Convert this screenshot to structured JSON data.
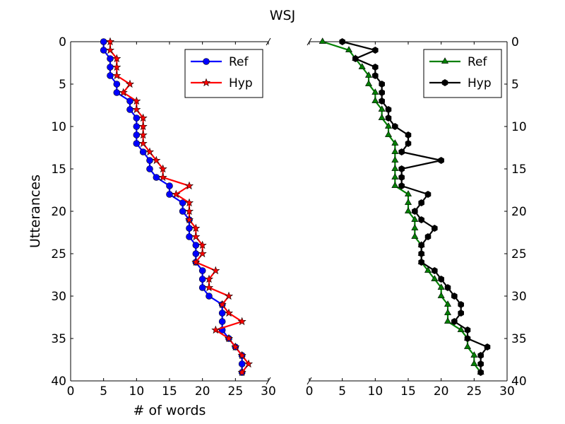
{
  "chart_data": {
    "type": "line",
    "title": "WSJ",
    "panels": [
      {
        "name": "left",
        "xlabel": "# of words",
        "ylabel": "Utterances",
        "xlim": [
          0,
          30
        ],
        "ylim": [
          40,
          0
        ],
        "xticks": [
          0,
          5,
          10,
          15,
          20,
          25,
          30
        ],
        "yticks": [
          0,
          5,
          10,
          15,
          20,
          25,
          30,
          35,
          40
        ],
        "legend_position": "top-right",
        "series": [
          {
            "name": "Ref",
            "color": "#0000ff",
            "marker": "circle",
            "x": [
              5,
              5,
              6,
              6,
              6,
              7,
              7,
              9,
              9,
              10,
              10,
              10,
              10,
              11,
              12,
              12,
              13,
              15,
              15,
              17,
              17,
              18,
              18,
              18,
              19,
              19,
              19,
              20,
              20,
              20,
              21,
              23,
              23,
              23,
              23,
              24,
              25,
              26,
              26,
              26
            ],
            "y": [
              0,
              1,
              2,
              3,
              4,
              5,
              6,
              7,
              8,
              9,
              10,
              11,
              12,
              13,
              14,
              15,
              16,
              17,
              18,
              19,
              20,
              21,
              22,
              23,
              24,
              25,
              26,
              27,
              28,
              29,
              30,
              31,
              32,
              33,
              34,
              35,
              36,
              37,
              38,
              39
            ]
          },
          {
            "name": "Hyp",
            "color": "#ff0000",
            "marker": "star",
            "x": [
              6,
              6,
              7,
              7,
              7,
              9,
              8,
              10,
              10,
              11,
              11,
              11,
              11,
              12,
              13,
              14,
              14,
              18,
              16,
              18,
              18,
              18,
              19,
              19,
              20,
              20,
              19,
              22,
              21,
              21,
              24,
              23,
              24,
              26,
              22,
              24,
              25,
              26,
              27,
              26
            ],
            "y": [
              0,
              1,
              2,
              3,
              4,
              5,
              6,
              7,
              8,
              9,
              10,
              11,
              12,
              13,
              14,
              15,
              16,
              17,
              18,
              19,
              20,
              21,
              22,
              23,
              24,
              25,
              26,
              27,
              28,
              29,
              30,
              31,
              32,
              33,
              34,
              35,
              36,
              37,
              38,
              39
            ]
          }
        ]
      },
      {
        "name": "right",
        "xlabel": "",
        "ylabel": "",
        "xlim": [
          0,
          30
        ],
        "ylim": [
          40,
          0
        ],
        "xticks": [
          0,
          5,
          10,
          15,
          20,
          25,
          30
        ],
        "yticks": [
          0,
          5,
          10,
          15,
          20,
          25,
          30,
          35,
          40
        ],
        "yaxis_side": "right",
        "legend_position": "top-right",
        "series": [
          {
            "name": "Ref",
            "color": "#008000",
            "marker": "triangle",
            "x": [
              2,
              6,
              7,
              8,
              9,
              9,
              10,
              10,
              11,
              11,
              12,
              12,
              13,
              13,
              13,
              13,
              13,
              13,
              15,
              15,
              15,
              16,
              16,
              16,
              17,
              17,
              17,
              18,
              19,
              20,
              20,
              21,
              21,
              21,
              23,
              24,
              24,
              25,
              25,
              26
            ],
            "y": [
              0,
              1,
              2,
              3,
              4,
              5,
              6,
              7,
              8,
              9,
              10,
              11,
              12,
              13,
              14,
              15,
              16,
              17,
              18,
              19,
              20,
              21,
              22,
              23,
              24,
              25,
              26,
              27,
              28,
              29,
              30,
              31,
              32,
              33,
              34,
              35,
              36,
              37,
              38,
              39
            ]
          },
          {
            "name": "Hyp",
            "color": "#000000",
            "marker": "hexagon",
            "x": [
              5,
              10,
              7,
              10,
              10,
              11,
              11,
              11,
              12,
              12,
              13,
              15,
              15,
              14,
              20,
              14,
              14,
              14,
              18,
              17,
              16,
              17,
              19,
              18,
              17,
              17,
              17,
              19,
              20,
              21,
              22,
              23,
              23,
              22,
              24,
              24,
              27,
              26,
              26,
              26
            ],
            "y": [
              0,
              1,
              2,
              3,
              4,
              5,
              6,
              7,
              8,
              9,
              10,
              11,
              12,
              13,
              14,
              15,
              16,
              17,
              18,
              19,
              20,
              21,
              22,
              23,
              24,
              25,
              26,
              27,
              28,
              29,
              30,
              31,
              32,
              33,
              34,
              35,
              36,
              37,
              38,
              39
            ]
          }
        ]
      }
    ]
  }
}
